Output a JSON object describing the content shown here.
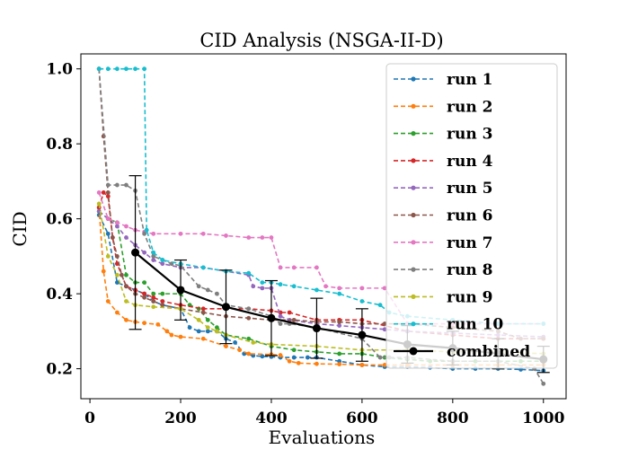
{
  "chart_data": {
    "type": "line",
    "title": "CID Analysis (NSGA-II-D)",
    "xlabel": "Evaluations",
    "ylabel": "CID",
    "xlim": [
      -20,
      1050
    ],
    "ylim": [
      0.12,
      1.04
    ],
    "xticks": [
      0,
      200,
      400,
      600,
      800,
      1000
    ],
    "yticks": [
      0.2,
      0.4,
      0.6,
      0.8,
      1.0
    ],
    "ytick_labels": [
      "0.2",
      "0.4",
      "0.6",
      "0.8",
      "1.0"
    ],
    "grid": false,
    "legend_position": "upper right",
    "series": [
      {
        "name": "run 1",
        "color": "#1f77b4",
        "style": "dashed-dot",
        "x": [
          20,
          40,
          60,
          80,
          100,
          120,
          140,
          160,
          200,
          220,
          240,
          260,
          280,
          300,
          320,
          340,
          360,
          380,
          400,
          420,
          450,
          480,
          500,
          550,
          600,
          650,
          700,
          750,
          800,
          850,
          900,
          950,
          1000
        ],
        "y": [
          0.61,
          0.56,
          0.43,
          0.42,
          0.41,
          0.4,
          0.38,
          0.37,
          0.36,
          0.31,
          0.3,
          0.3,
          0.3,
          0.28,
          0.27,
          0.24,
          0.235,
          0.233,
          0.232,
          0.23,
          0.23,
          0.23,
          0.23,
          0.22,
          0.21,
          0.205,
          0.205,
          0.203,
          0.2,
          0.2,
          0.2,
          0.198,
          0.195
        ]
      },
      {
        "name": "run 2",
        "color": "#ff7f0e",
        "style": "dashed-dot",
        "x": [
          20,
          30,
          40,
          60,
          80,
          100,
          120,
          150,
          170,
          180,
          200,
          250,
          300,
          330,
          350,
          400,
          420,
          440,
          460,
          500,
          550,
          600,
          650,
          700,
          800,
          900,
          1000
        ],
        "y": [
          0.63,
          0.46,
          0.38,
          0.35,
          0.33,
          0.325,
          0.322,
          0.318,
          0.3,
          0.29,
          0.285,
          0.28,
          0.26,
          0.25,
          0.24,
          0.238,
          0.236,
          0.22,
          0.215,
          0.213,
          0.212,
          0.21,
          0.21,
          0.21,
          0.21,
          0.21,
          0.21
        ]
      },
      {
        "name": "run 3",
        "color": "#2ca02c",
        "style": "dashed-dot",
        "x": [
          20,
          40,
          60,
          80,
          100,
          120,
          140,
          160,
          200,
          220,
          240,
          260,
          280,
          300,
          350,
          400,
          450,
          500,
          550,
          600,
          650,
          700,
          750,
          800,
          850,
          900,
          950,
          1000
        ],
        "y": [
          0.62,
          0.6,
          0.59,
          0.45,
          0.43,
          0.43,
          0.4,
          0.4,
          0.4,
          0.37,
          0.36,
          0.33,
          0.31,
          0.29,
          0.28,
          0.26,
          0.25,
          0.245,
          0.24,
          0.24,
          0.23,
          0.225,
          0.22,
          0.22,
          0.22,
          0.22,
          0.22,
          0.22
        ]
      },
      {
        "name": "run 4",
        "color": "#d62728",
        "style": "dashed-dot",
        "x": [
          20,
          30,
          40,
          50,
          60,
          80,
          100,
          120,
          140,
          160,
          200,
          250,
          300,
          350,
          400,
          420,
          440,
          500,
          550,
          600,
          700,
          800,
          900,
          1000
        ],
        "y": [
          0.63,
          0.67,
          0.66,
          0.55,
          0.48,
          0.42,
          0.41,
          0.4,
          0.39,
          0.38,
          0.37,
          0.36,
          0.36,
          0.36,
          0.355,
          0.35,
          0.35,
          0.33,
          0.33,
          0.33,
          0.3,
          0.29,
          0.28,
          0.28
        ]
      },
      {
        "name": "run 5",
        "color": "#9467bd",
        "style": "dashed-dot",
        "x": [
          20,
          40,
          60,
          80,
          100,
          120,
          140,
          160,
          200,
          250,
          300,
          350,
          360,
          380,
          400,
          420,
          440,
          500,
          550,
          600,
          650,
          700,
          800,
          900,
          1000
        ],
        "y": [
          0.62,
          0.6,
          0.58,
          0.55,
          0.53,
          0.51,
          0.49,
          0.48,
          0.47,
          0.47,
          0.46,
          0.45,
          0.42,
          0.415,
          0.415,
          0.34,
          0.33,
          0.32,
          0.315,
          0.31,
          0.305,
          0.3,
          0.295,
          0.29,
          0.285
        ]
      },
      {
        "name": "run 6",
        "color": "#8c564b",
        "style": "dashed-dot",
        "x": [
          20,
          30,
          40,
          50,
          60,
          70,
          80,
          100,
          120,
          140,
          160,
          200,
          250,
          300,
          350,
          400,
          450,
          500,
          550,
          600,
          650,
          700,
          800,
          900,
          950,
          1000
        ],
        "y": [
          1.0,
          0.82,
          0.67,
          0.55,
          0.5,
          0.45,
          0.42,
          0.4,
          0.39,
          0.38,
          0.37,
          0.36,
          0.35,
          0.34,
          0.335,
          0.33,
          0.33,
          0.325,
          0.325,
          0.32,
          0.32,
          0.32,
          0.31,
          0.3,
          0.28,
          0.28
        ]
      },
      {
        "name": "run 7",
        "color": "#e377c2",
        "style": "dashed-dot",
        "x": [
          20,
          40,
          60,
          80,
          100,
          120,
          140,
          200,
          250,
          300,
          350,
          380,
          400,
          420,
          450,
          500,
          520,
          550,
          600,
          650,
          700,
          800,
          900,
          1000
        ],
        "y": [
          0.67,
          0.6,
          0.59,
          0.58,
          0.57,
          0.565,
          0.56,
          0.56,
          0.56,
          0.555,
          0.55,
          0.55,
          0.55,
          0.47,
          0.47,
          0.47,
          0.42,
          0.415,
          0.415,
          0.415,
          0.32,
          0.32,
          0.32,
          0.32
        ]
      },
      {
        "name": "run 8",
        "color": "#7f7f7f",
        "style": "dashed-dot",
        "x": [
          20,
          40,
          60,
          80,
          100,
          120,
          140,
          160,
          180,
          200,
          240,
          260,
          280,
          300,
          350,
          400,
          420,
          440,
          500,
          600,
          640,
          660,
          700,
          800,
          900,
          980,
          1000
        ],
        "y": [
          1.0,
          0.69,
          0.69,
          0.69,
          0.675,
          0.56,
          0.5,
          0.49,
          0.48,
          0.475,
          0.42,
          0.41,
          0.4,
          0.37,
          0.36,
          0.34,
          0.32,
          0.32,
          0.31,
          0.28,
          0.23,
          0.23,
          0.23,
          0.22,
          0.22,
          0.2,
          0.16
        ]
      },
      {
        "name": "run 9",
        "color": "#bcbd22",
        "style": "dashed-dot",
        "x": [
          20,
          40,
          60,
          80,
          100,
          140,
          200,
          240,
          260,
          280,
          300,
          360,
          400,
          500,
          600,
          700,
          800,
          900,
          1000
        ],
        "y": [
          0.64,
          0.5,
          0.45,
          0.38,
          0.37,
          0.365,
          0.36,
          0.33,
          0.31,
          0.3,
          0.29,
          0.27,
          0.265,
          0.26,
          0.25,
          0.25,
          0.245,
          0.245,
          0.24
        ]
      },
      {
        "name": "run 10",
        "color": "#17becf",
        "style": "dashed-dot",
        "x": [
          20,
          40,
          60,
          80,
          100,
          120,
          125,
          140,
          160,
          200,
          250,
          300,
          350,
          380,
          400,
          420,
          450,
          500,
          550,
          600,
          640,
          660,
          700,
          800,
          900,
          1000
        ],
        "y": [
          1.0,
          1.0,
          1.0,
          1.0,
          1.0,
          1.0,
          0.57,
          0.51,
          0.49,
          0.48,
          0.47,
          0.46,
          0.455,
          0.43,
          0.43,
          0.425,
          0.42,
          0.41,
          0.4,
          0.38,
          0.37,
          0.35,
          0.34,
          0.33,
          0.32,
          0.32
        ]
      }
    ],
    "combined": {
      "name": "combined",
      "color": "#000000",
      "style": "solid-marker",
      "x": [
        100,
        200,
        300,
        400,
        500,
        600,
        700,
        800,
        900,
        1000
      ],
      "y": [
        0.51,
        0.41,
        0.365,
        0.335,
        0.308,
        0.29,
        0.265,
        0.255,
        0.24,
        0.225
      ],
      "yerr": [
        0.205,
        0.08,
        0.098,
        0.1,
        0.08,
        0.07,
        0.05,
        0.045,
        0.04,
        0.035
      ]
    }
  }
}
